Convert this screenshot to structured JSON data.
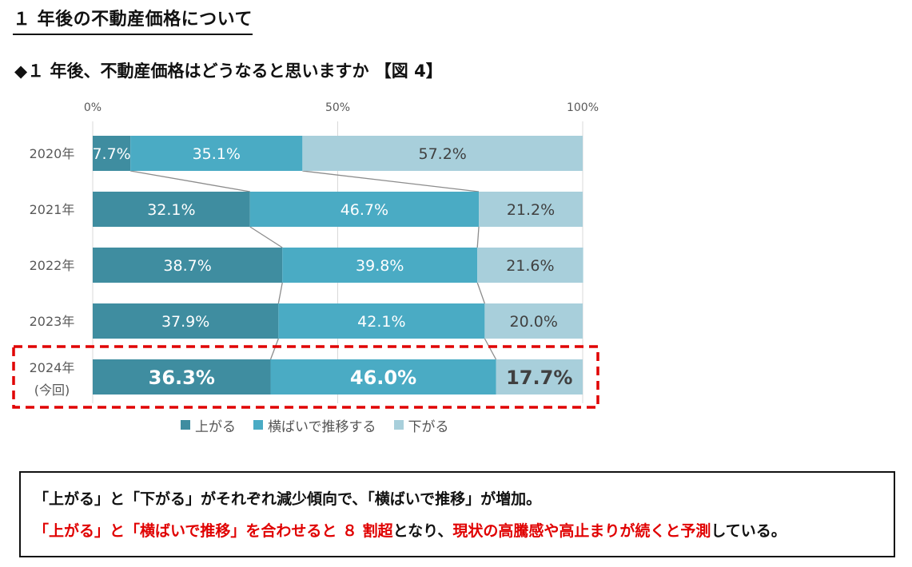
{
  "page": {
    "title": "１ 年後の不動産価格について",
    "question": "◆１ 年後、不動産価格はどうなると思いますか 【図 4】"
  },
  "chart_data": {
    "type": "bar",
    "orientation": "horizontal",
    "stacked": true,
    "percent_stacked": true,
    "xlim": [
      0,
      100
    ],
    "x_ticks": [
      "0%",
      "50%",
      "100%"
    ],
    "categories": [
      "2020年",
      "2021年",
      "2022年",
      "2023年",
      "2024年"
    ],
    "category_sublabels": [
      "",
      "",
      "",
      "",
      "(今回)"
    ],
    "series": [
      {
        "name": "上がる",
        "color": "#3f8da0",
        "values": [
          7.7,
          32.1,
          38.7,
          37.9,
          36.3
        ],
        "labels": [
          "7.7%",
          "32.1%",
          "38.7%",
          "37.9%",
          "36.3%"
        ]
      },
      {
        "name": "横ばいで推移する",
        "color": "#4aabc4",
        "values": [
          35.1,
          46.7,
          39.8,
          42.1,
          46.0
        ],
        "labels": [
          "35.1%",
          "46.7%",
          "39.8%",
          "42.1%",
          "46.0%"
        ]
      },
      {
        "name": "下がる",
        "color": "#a8cfdb",
        "values": [
          57.2,
          21.2,
          21.6,
          20.0,
          17.7
        ],
        "labels": [
          "57.2%",
          "21.2%",
          "21.6%",
          "20.0%",
          "17.7%"
        ]
      }
    ],
    "series_lines": true,
    "grid": true,
    "legend_position": "bottom",
    "highlight_category": "2024年"
  },
  "summary": {
    "line1": "「上がる」と「下がる」がそれぞれ減少傾向で、「横ばいで推移」が増加。",
    "line2_red1": "「上がる」と「横ばいで推移」を合わせると ８ 割超",
    "line2_black1": "となり、",
    "line2_red2": "現状の高騰感や高止まりが続くと予測",
    "line2_black2": "している。"
  },
  "colors": {
    "highlight": "#e00000",
    "label_light": "#ffffff",
    "label_dark": "#404040"
  }
}
